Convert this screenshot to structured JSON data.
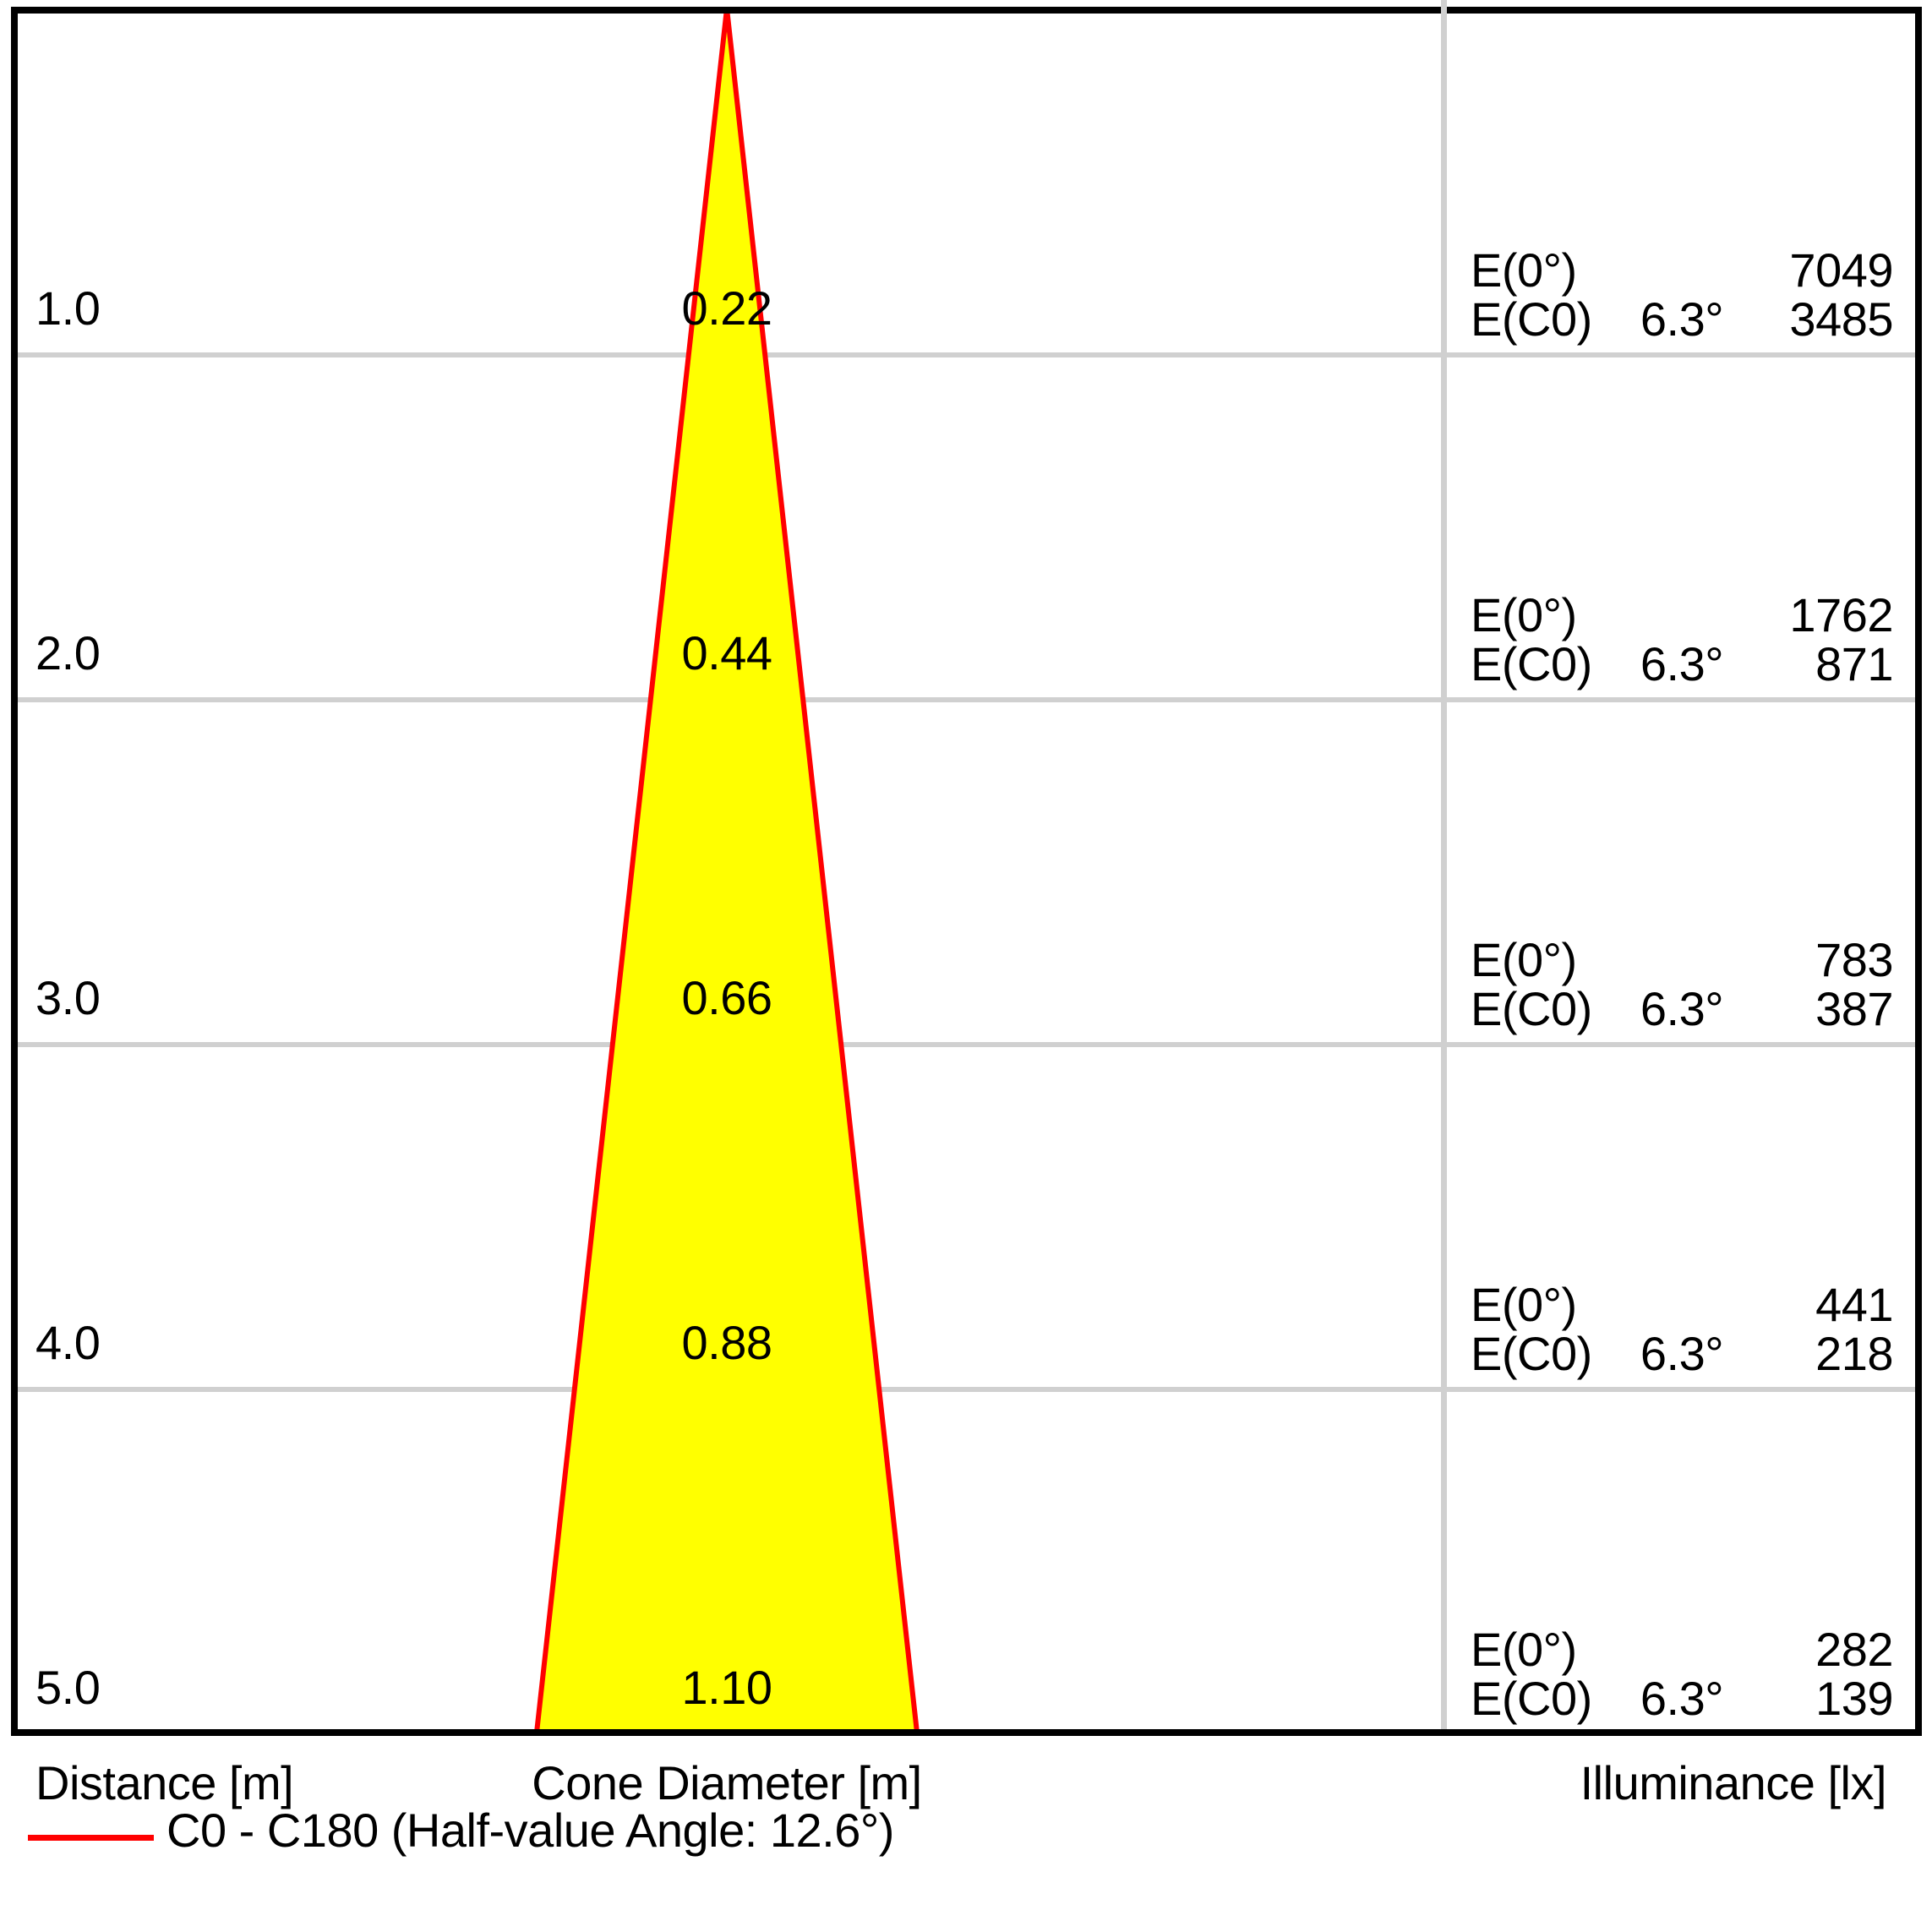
{
  "chart_data": {
    "type": "area",
    "variant": "light-cone-diagram",
    "beam_angle": "6.3°",
    "half_value_angle": "12.6°",
    "rows": [
      {
        "distance": "1.0",
        "cone_diameter": "0.22",
        "e0_label": "E(0°)",
        "e0": "7049",
        "ec0_label": "E(C0)",
        "angle": "6.3°",
        "ec0": "3485"
      },
      {
        "distance": "2.0",
        "cone_diameter": "0.44",
        "e0_label": "E(0°)",
        "e0": "1762",
        "ec0_label": "E(C0)",
        "angle": "6.3°",
        "ec0": "871"
      },
      {
        "distance": "3.0",
        "cone_diameter": "0.66",
        "e0_label": "E(0°)",
        "e0": "783",
        "ec0_label": "E(C0)",
        "angle": "6.3°",
        "ec0": "387"
      },
      {
        "distance": "4.0",
        "cone_diameter": "0.88",
        "e0_label": "E(0°)",
        "e0": "441",
        "ec0_label": "E(C0)",
        "angle": "6.3°",
        "ec0": "218"
      },
      {
        "distance": "5.0",
        "cone_diameter": "1.10",
        "e0_label": "E(0°)",
        "e0": "282",
        "ec0_label": "E(C0)",
        "angle": "6.3°",
        "ec0": "139"
      }
    ],
    "distances_m": [
      1.0,
      2.0,
      3.0,
      4.0,
      5.0
    ],
    "cone_diameters_m": [
      0.22,
      0.44,
      0.66,
      0.88,
      1.1
    ],
    "illuminance_e0_lx": [
      7049,
      1762,
      783,
      441,
      282
    ],
    "illuminance_ec0_lx": [
      3485,
      871,
      387,
      218,
      139
    ],
    "axis": {
      "distance_label": "Distance [m]",
      "cone_label": "Cone Diameter [m]",
      "illuminance_label": "Illuminance [lx]"
    },
    "legend": "C0 - C180 (Half-value Angle: 12.6°)",
    "legend_position": "bottom-left",
    "grid": true,
    "colors": {
      "cone_fill": "#ffff00",
      "cone_stroke": "#ff0000",
      "grid_line": "#d0d0d0",
      "border": "#000000"
    }
  }
}
